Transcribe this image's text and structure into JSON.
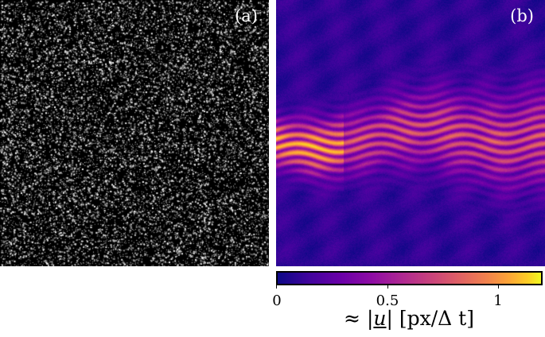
{
  "panels": {
    "a": {
      "label": "(a)"
    },
    "b": {
      "label": "(b)"
    }
  },
  "colorbar": {
    "colormap": "plasma",
    "range": [
      0,
      1.2
    ],
    "ticks": [
      {
        "value": 0,
        "label": "0"
      },
      {
        "value": 0.5,
        "label": "0.5"
      },
      {
        "value": 1,
        "label": "1"
      }
    ],
    "label_prefix": "≈ |",
    "label_symbol": "u",
    "label_suffix": "| [px/Δ t]"
  }
}
